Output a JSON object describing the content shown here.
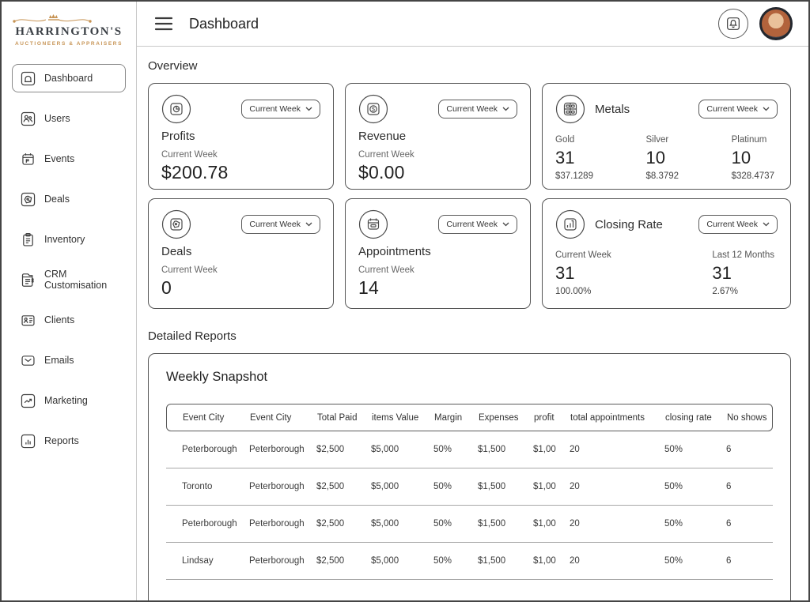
{
  "brand": {
    "name": "HARRINGTON'S",
    "tagline": "AUCTIONEERS & APPRAISERS",
    "accent_color": "#c79455"
  },
  "header": {
    "title": "Dashboard"
  },
  "sidebar": {
    "items": [
      {
        "label": "Dashboard",
        "icon": "home-icon",
        "active": true
      },
      {
        "label": "Users",
        "icon": "users-icon",
        "active": false
      },
      {
        "label": "Events",
        "icon": "calendar-icon",
        "active": false
      },
      {
        "label": "Deals",
        "icon": "tag-icon",
        "active": false
      },
      {
        "label": "Inventory",
        "icon": "clipboard-icon",
        "active": false
      },
      {
        "label": "CRM Customisation",
        "icon": "panel-icon",
        "active": false
      },
      {
        "label": "Clients",
        "icon": "id-card-icon",
        "active": false
      },
      {
        "label": "Emails",
        "icon": "envelope-icon",
        "active": false
      },
      {
        "label": "Marketing",
        "icon": "trend-icon",
        "active": false
      },
      {
        "label": "Reports",
        "icon": "bar-chart-icon",
        "active": false
      }
    ]
  },
  "overview": {
    "heading": "Overview",
    "cards": {
      "profits": {
        "title": "Profits",
        "period": "Current Week",
        "value": "$200.78",
        "selector": "Current Week"
      },
      "revenue": {
        "title": "Revenue",
        "period": "Current Week",
        "value": "$0.00",
        "selector": "Current Week"
      },
      "metals": {
        "title": "Metals",
        "selector": "Current Week",
        "columns": [
          {
            "label": "Gold",
            "count": "31",
            "price": "$37.1289"
          },
          {
            "label": "Silver",
            "count": "10",
            "price": "$8.3792"
          },
          {
            "label": "Platinum",
            "count": "10",
            "price": "$328.4737"
          }
        ]
      },
      "deals": {
        "title": "Deals",
        "period": "Current Week",
        "value": "0",
        "selector": "Current Week"
      },
      "appointments": {
        "title": "Appointments",
        "period": "Current Week",
        "value": "14",
        "selector": "Current Week"
      },
      "closing_rate": {
        "title": "Closing Rate",
        "selector": "Current Week",
        "columns": [
          {
            "label": "Current Week",
            "count": "31",
            "sub": "100.00%"
          },
          {
            "label": "Last 12 Months",
            "count": "31",
            "sub": "2.67%"
          }
        ]
      }
    }
  },
  "reports": {
    "heading": "Detailed Reports",
    "card_title": "Weekly Snapshot",
    "table": {
      "columns": [
        "Event City",
        "Event City",
        "Total Paid",
        "items Value",
        "Margin",
        "Expenses",
        "profit",
        "total appointments",
        "closing rate",
        "No shows"
      ],
      "rows": [
        [
          "Peterborough",
          "Peterborough",
          "$2,500",
          "$5,000",
          "50%",
          "$1,500",
          "$1,00",
          "20",
          "50%",
          "6"
        ],
        [
          "Toronto",
          "Peterborough",
          "$2,500",
          "$5,000",
          "50%",
          "$1,500",
          "$1,00",
          "20",
          "50%",
          "6"
        ],
        [
          "Peterborough",
          "Peterborough",
          "$2,500",
          "$5,000",
          "50%",
          "$1,500",
          "$1,00",
          "20",
          "50%",
          "6"
        ],
        [
          "Lindsay",
          "Peterborough",
          "$2,500",
          "$5,000",
          "50%",
          "$1,500",
          "$1,00",
          "20",
          "50%",
          "6"
        ]
      ]
    }
  }
}
